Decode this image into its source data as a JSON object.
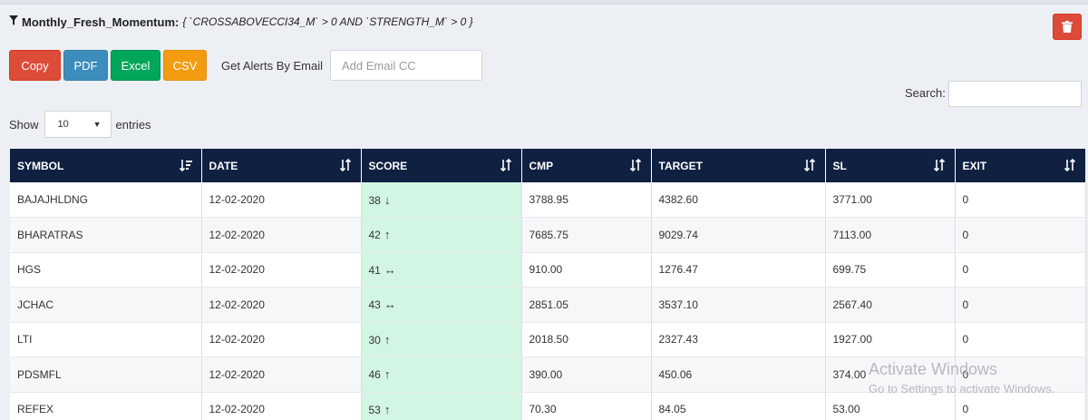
{
  "header": {
    "filter_icon": "funnel-icon",
    "title": "Monthly_Fresh_Momentum:",
    "condition": "{ `CROSSABOVECCI34_M` > 0 AND `STRENGTH_M` > 0 }",
    "delete_icon": "trash-icon",
    "colors": {
      "delete": "#dd4b39"
    }
  },
  "toolbar": {
    "copy_label": "Copy",
    "pdf_label": "PDF",
    "excel_label": "Excel",
    "csv_label": "CSV",
    "alert_label": "Get Alerts By Email",
    "email_placeholder": "Add Email CC",
    "colors": {
      "copy": "#dd4b39",
      "pdf": "#3c8dbc",
      "excel": "#00a65a",
      "csv": "#f39c12"
    }
  },
  "search": {
    "label": "Search:",
    "value": ""
  },
  "length": {
    "show_label": "Show",
    "selected": "10",
    "entries_label": "entries"
  },
  "table": {
    "header_color": "#0f2041",
    "score_cell_color": "#d3f5e3",
    "columns": [
      {
        "label": "SYMBOL",
        "sort": "sorted-asc-icon"
      },
      {
        "label": "DATE",
        "sort": "sort-icon"
      },
      {
        "label": "SCORE",
        "sort": "sort-icon"
      },
      {
        "label": "CMP",
        "sort": "sort-icon"
      },
      {
        "label": "TARGET",
        "sort": "sort-icon"
      },
      {
        "label": "SL",
        "sort": "sort-icon"
      },
      {
        "label": "EXIT",
        "sort": "sort-icon"
      }
    ],
    "rows": [
      {
        "symbol": "BAJAJHLDNG",
        "date": "12-02-2020",
        "score": "38",
        "trend": "↓",
        "cmp": "3788.95",
        "target": "4382.60",
        "sl": "3771.00",
        "exit": "0"
      },
      {
        "symbol": "BHARATRAS",
        "date": "12-02-2020",
        "score": "42",
        "trend": "↑",
        "cmp": "7685.75",
        "target": "9029.74",
        "sl": "7113.00",
        "exit": "0"
      },
      {
        "symbol": "HGS",
        "date": "12-02-2020",
        "score": "41",
        "trend": "↔",
        "cmp": "910.00",
        "target": "1276.47",
        "sl": "699.75",
        "exit": "0"
      },
      {
        "symbol": "JCHAC",
        "date": "12-02-2020",
        "score": "43",
        "trend": "↔",
        "cmp": "2851.05",
        "target": "3537.10",
        "sl": "2567.40",
        "exit": "0"
      },
      {
        "symbol": "LTI",
        "date": "12-02-2020",
        "score": "30",
        "trend": "↑",
        "cmp": "2018.50",
        "target": "2327.43",
        "sl": "1927.00",
        "exit": "0"
      },
      {
        "symbol": "PDSMFL",
        "date": "12-02-2020",
        "score": "46",
        "trend": "↑",
        "cmp": "390.00",
        "target": "450.06",
        "sl": "374.00",
        "exit": "0"
      },
      {
        "symbol": "REFEX",
        "date": "12-02-2020",
        "score": "53",
        "trend": "↑",
        "cmp": "70.30",
        "target": "84.05",
        "sl": "53.00",
        "exit": "0"
      }
    ]
  },
  "watermark": {
    "line1": "Activate Windows",
    "line2": "Go to Settings to activate Windows."
  }
}
